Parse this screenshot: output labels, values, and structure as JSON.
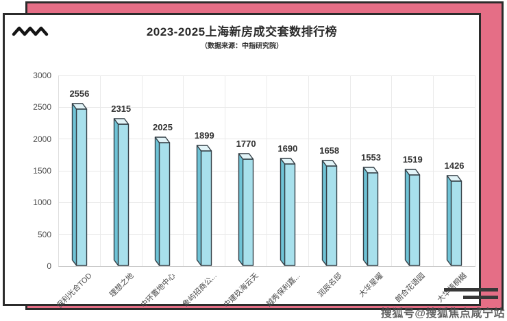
{
  "page": {
    "title": "2023-2025上海新房成交套数排行榜",
    "subtitle": "（数据来源：中指研究院）",
    "watermark": "搜狐号@搜狐焦点咸宁站"
  },
  "colors": {
    "backdrop_pink": "#e56e86",
    "card_border": "#2b2b2b",
    "bar_front": "#a8e0ec",
    "bar_side": "#6fc3d6",
    "bar_top": "#e2f4f8",
    "bar_outline": "#333f46",
    "gridline": "#e7e7e7"
  },
  "icons": {
    "logo": "zigzag-icon"
  },
  "chart_data": {
    "type": "bar",
    "title": "2023-2025上海新房成交套数排行榜",
    "subtitle": "（数据来源：中指研究院）",
    "categories": [
      "保利光合TOD",
      "理想之地",
      "中环置地中心",
      "象屿招商公...",
      "中建玖海云天",
      "越秀保利嘉...",
      "润辰名邸",
      "大华星曜",
      "朗合花语园",
      "大华梧桐樾"
    ],
    "values": [
      2556,
      2315,
      2025,
      1899,
      1770,
      1690,
      1658,
      1553,
      1519,
      1426
    ],
    "xlabel": "",
    "ylabel": "",
    "ylim": [
      0,
      3000
    ],
    "yticks": [
      0,
      500,
      1000,
      1500,
      2000,
      2500,
      3000
    ],
    "grid": true,
    "legend": "none",
    "bar_style": "3d",
    "value_labels": true,
    "x_tick_rotation": 45
  }
}
